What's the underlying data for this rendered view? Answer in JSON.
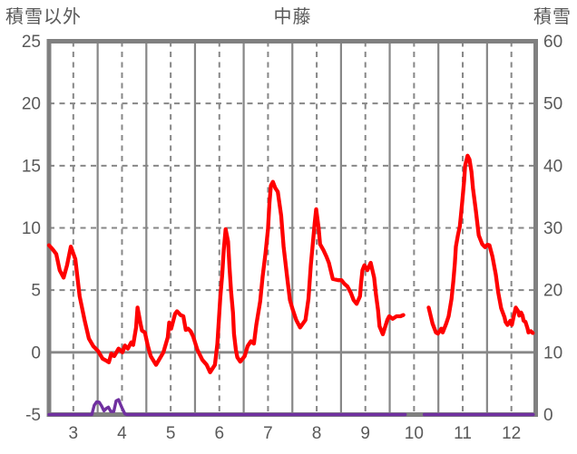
{
  "header": {
    "left_axis_title": "積雪以外",
    "chart_title": "中藤",
    "right_axis_title": "積雪"
  },
  "colors": {
    "background": "#ffffff",
    "text": "#595959",
    "grid": "#878787",
    "border": "#808080",
    "red_series": "#ff0000",
    "purple_series": "#7030a0"
  },
  "chart_data": {
    "type": "line",
    "title": "中藤",
    "xlabel": "",
    "x_axis": {
      "min": 3,
      "max": 13,
      "tick_labels": [
        "3",
        "4",
        "5",
        "6",
        "7",
        "8",
        "9",
        "10",
        "11",
        "12"
      ],
      "tick_positions": [
        3.5,
        4.5,
        5.5,
        6.5,
        7.5,
        8.5,
        9.5,
        10.5,
        11.5,
        12.5
      ],
      "solid_gridlines_at": [
        4,
        5,
        6,
        7,
        8,
        9,
        10,
        11,
        12
      ],
      "dashed_gridlines_at": [
        3.5,
        4.5,
        5.5,
        6.5,
        7.5,
        8.5,
        9.5,
        10.5,
        11.5,
        12.5
      ]
    },
    "y_left_axis": {
      "title": "積雪以外",
      "min": -5,
      "max": 25,
      "ticks": [
        25,
        20,
        15,
        10,
        5,
        0,
        -5
      ],
      "dashed_gridlines_at": [
        20,
        15,
        10,
        5
      ],
      "solid_gridline_at": 0
    },
    "y_right_axis": {
      "title": "積雪",
      "min": 0,
      "max": 60,
      "ticks": [
        60,
        50,
        40,
        30,
        20,
        10,
        0
      ]
    },
    "data_gap_x": [
      10.3,
      10.75
    ],
    "series": [
      {
        "name": "積雪以外",
        "axis": "left",
        "color": "#ff0000",
        "width": 4.3,
        "segments": [
          [
            [
              3.0,
              8.6
            ],
            [
              3.07,
              8.3
            ],
            [
              3.15,
              7.9
            ],
            [
              3.22,
              6.6
            ],
            [
              3.3,
              6.0
            ],
            [
              3.37,
              7.0
            ],
            [
              3.45,
              8.5
            ],
            [
              3.54,
              7.5
            ],
            [
              3.63,
              4.5
            ],
            [
              3.73,
              2.6
            ],
            [
              3.82,
              1.1
            ],
            [
              3.91,
              0.5
            ],
            [
              4.01,
              0.1
            ],
            [
              4.1,
              -0.5
            ],
            [
              4.19,
              -0.7
            ],
            [
              4.23,
              -0.8
            ],
            [
              4.28,
              -0.1
            ],
            [
              4.34,
              -0.3
            ],
            [
              4.43,
              0.3
            ],
            [
              4.51,
              0.0
            ],
            [
              4.56,
              0.55
            ],
            [
              4.62,
              0.3
            ],
            [
              4.69,
              0.8
            ],
            [
              4.73,
              0.6
            ],
            [
              4.79,
              2.0
            ],
            [
              4.82,
              3.6
            ],
            [
              4.88,
              2.3
            ],
            [
              4.91,
              1.75
            ],
            [
              4.97,
              1.6
            ],
            [
              5.03,
              0.55
            ],
            [
              5.09,
              -0.3
            ],
            [
              5.2,
              -1.0
            ],
            [
              5.35,
              0.0
            ],
            [
              5.44,
              1.2
            ],
            [
              5.47,
              2.4
            ],
            [
              5.51,
              1.9
            ],
            [
              5.59,
              3.1
            ],
            [
              5.63,
              3.3
            ],
            [
              5.7,
              3.0
            ],
            [
              5.76,
              2.9
            ],
            [
              5.81,
              1.8
            ],
            [
              5.86,
              1.9
            ],
            [
              5.91,
              1.7
            ],
            [
              5.96,
              1.3
            ],
            [
              6.05,
              0.2
            ],
            [
              6.15,
              -0.6
            ],
            [
              6.24,
              -1.0
            ],
            [
              6.31,
              -1.6
            ],
            [
              6.41,
              -1.0
            ],
            [
              6.46,
              0.7
            ],
            [
              6.52,
              4.4
            ],
            [
              6.56,
              6.3
            ],
            [
              6.59,
              8.2
            ],
            [
              6.63,
              9.9
            ],
            [
              6.68,
              8.9
            ],
            [
              6.71,
              6.8
            ],
            [
              6.74,
              4.9
            ],
            [
              6.78,
              3.2
            ],
            [
              6.8,
              1.5
            ],
            [
              6.84,
              0.2
            ],
            [
              6.87,
              -0.4
            ],
            [
              6.93,
              -0.75
            ],
            [
              7.02,
              -0.3
            ],
            [
              7.08,
              0.5
            ],
            [
              7.15,
              0.9
            ],
            [
              7.21,
              0.7
            ],
            [
              7.26,
              2.2
            ],
            [
              7.34,
              4.1
            ],
            [
              7.39,
              6.1
            ],
            [
              7.45,
              8.0
            ],
            [
              7.5,
              9.9
            ],
            [
              7.53,
              12.0
            ],
            [
              7.56,
              13.4
            ],
            [
              7.6,
              13.7
            ],
            [
              7.65,
              13.2
            ],
            [
              7.7,
              12.9
            ],
            [
              7.77,
              11.0
            ],
            [
              7.82,
              8.5
            ],
            [
              7.9,
              5.8
            ],
            [
              7.95,
              4.2
            ],
            [
              8.01,
              3.4
            ],
            [
              8.08,
              2.6
            ],
            [
              8.16,
              2.0
            ],
            [
              8.27,
              2.6
            ],
            [
              8.33,
              4.3
            ],
            [
              8.38,
              7.0
            ],
            [
              8.46,
              10.4
            ],
            [
              8.49,
              11.5
            ],
            [
              8.54,
              10.0
            ],
            [
              8.57,
              8.7
            ],
            [
              8.64,
              8.2
            ],
            [
              8.7,
              7.7
            ],
            [
              8.75,
              7.2
            ],
            [
              8.83,
              5.9
            ],
            [
              8.94,
              5.8
            ],
            [
              9.01,
              5.8
            ],
            [
              9.07,
              5.5
            ],
            [
              9.13,
              5.3
            ],
            [
              9.2,
              4.8
            ],
            [
              9.26,
              4.2
            ],
            [
              9.32,
              3.9
            ],
            [
              9.39,
              4.5
            ],
            [
              9.41,
              5.5
            ],
            [
              9.44,
              6.6
            ],
            [
              9.48,
              7.0
            ],
            [
              9.54,
              6.6
            ],
            [
              9.61,
              7.2
            ],
            [
              9.68,
              6.0
            ],
            [
              9.72,
              4.6
            ],
            [
              9.76,
              3.4
            ],
            [
              9.79,
              2.1
            ],
            [
              9.86,
              1.45
            ],
            [
              9.95,
              2.6
            ],
            [
              9.99,
              2.9
            ],
            [
              10.06,
              2.7
            ],
            [
              10.14,
              2.9
            ],
            [
              10.22,
              2.9
            ],
            [
              10.28,
              3.0
            ]
          ],
          [
            [
              10.8,
              3.6
            ],
            [
              10.88,
              2.3
            ],
            [
              10.95,
              1.6
            ],
            [
              10.99,
              1.5
            ],
            [
              11.06,
              1.9
            ],
            [
              11.09,
              1.6
            ],
            [
              11.16,
              2.3
            ],
            [
              11.21,
              2.9
            ],
            [
              11.27,
              4.3
            ],
            [
              11.31,
              5.8
            ],
            [
              11.34,
              7.2
            ],
            [
              11.36,
              8.5
            ],
            [
              11.4,
              9.4
            ],
            [
              11.44,
              10.1
            ],
            [
              11.46,
              10.9
            ],
            [
              11.49,
              12.1
            ],
            [
              11.53,
              13.8
            ],
            [
              11.55,
              15.0
            ],
            [
              11.6,
              15.8
            ],
            [
              11.64,
              15.5
            ],
            [
              11.68,
              14.5
            ],
            [
              11.71,
              13.2
            ],
            [
              11.77,
              11.4
            ],
            [
              11.83,
              9.4
            ],
            [
              11.9,
              8.7
            ],
            [
              11.96,
              8.45
            ],
            [
              12.01,
              8.65
            ],
            [
              12.05,
              8.6
            ],
            [
              12.11,
              7.7
            ],
            [
              12.18,
              6.25
            ],
            [
              12.23,
              4.8
            ],
            [
              12.29,
              3.55
            ],
            [
              12.36,
              2.8
            ],
            [
              12.38,
              2.45
            ],
            [
              12.42,
              2.2
            ],
            [
              12.48,
              2.55
            ],
            [
              12.51,
              2.2
            ],
            [
              12.55,
              2.95
            ],
            [
              12.59,
              3.6
            ],
            [
              12.64,
              3.3
            ],
            [
              12.66,
              2.95
            ],
            [
              12.7,
              3.2
            ],
            [
              12.73,
              2.95
            ],
            [
              12.75,
              2.55
            ],
            [
              12.79,
              2.45
            ],
            [
              12.83,
              1.95
            ],
            [
              12.85,
              1.6
            ],
            [
              12.9,
              1.7
            ],
            [
              12.94,
              1.55
            ]
          ]
        ]
      },
      {
        "name": "積雪",
        "axis": "right",
        "color": "#7030a0",
        "width": 3.4,
        "segments": [
          [
            [
              3.0,
              0
            ],
            [
              3.88,
              0
            ],
            [
              3.93,
              1.5
            ],
            [
              3.98,
              2.05
            ],
            [
              4.03,
              2.0
            ],
            [
              4.08,
              1.4
            ],
            [
              4.13,
              0.6
            ],
            [
              4.18,
              1.0
            ],
            [
              4.22,
              1.2
            ],
            [
              4.27,
              0.5
            ],
            [
              4.33,
              0.5
            ],
            [
              4.38,
              2.2
            ],
            [
              4.43,
              2.4
            ],
            [
              4.47,
              1.6
            ],
            [
              4.51,
              0.9
            ],
            [
              4.56,
              0.1
            ],
            [
              4.6,
              0
            ],
            [
              10.32,
              0
            ]
          ],
          [
            [
              10.71,
              0
            ],
            [
              12.95,
              0
            ]
          ]
        ]
      }
    ]
  }
}
